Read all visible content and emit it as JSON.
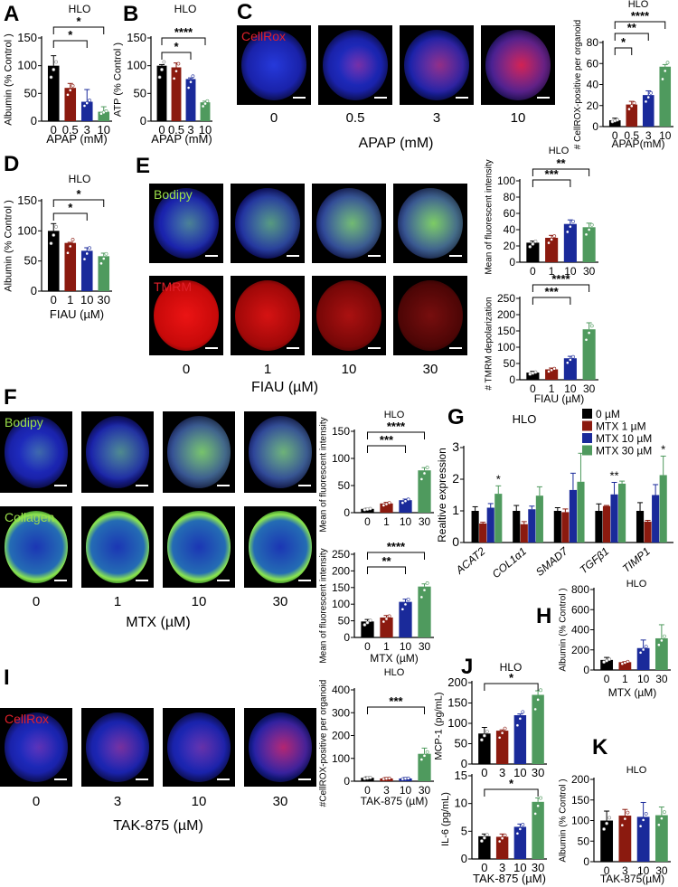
{
  "panels": {
    "A": "A",
    "B": "B",
    "C": "C",
    "D": "D",
    "E": "E",
    "F": "F",
    "G": "G",
    "H": "H",
    "I": "I",
    "J": "J",
    "K": "K"
  },
  "colors": {
    "c0": "#000000",
    "c1": "#8b1a0f",
    "c2": "#1a2a9a",
    "c3": "#4f9a5e",
    "cellrox": "#e0202a",
    "bodipy": "#9be04a",
    "tmrm": "#e0202a",
    "collagen": "#9be04a"
  },
  "images": {
    "C": {
      "channel": "CellRox",
      "labels": [
        "0",
        "0.5",
        "3",
        "10"
      ],
      "axis": "APAP (mM)"
    },
    "E": {
      "channel_top": "Bodipy",
      "channel_bottom": "TMRM",
      "labels": [
        "0",
        "1",
        "10",
        "30"
      ],
      "axis": "FIAU (µM)"
    },
    "F": {
      "channel_top": "Bodipy",
      "channel_bottom": "Collagen",
      "labels": [
        "0",
        "1",
        "10",
        "30"
      ],
      "axis": "MTX (µM)"
    },
    "I": {
      "channel": "CellRox",
      "labels": [
        "0",
        "3",
        "10",
        "30"
      ],
      "axis": "TAK-875 (µM)"
    }
  },
  "chart_data": [
    {
      "id": "A",
      "type": "bar",
      "title": "HLO",
      "categories": [
        "0",
        "0.5",
        "3",
        "10"
      ],
      "values": [
        100,
        60,
        35,
        17
      ],
      "errors": [
        18,
        8,
        22,
        9
      ],
      "ylim": [
        0,
        150
      ],
      "yticks": [
        0,
        50,
        100,
        150
      ],
      "ylabel": "Albumin (% Control )",
      "xlabel": "APAP (mM)",
      "significance": [
        {
          "from": 0,
          "to": 2,
          "label": "*"
        },
        {
          "from": 0,
          "to": 3,
          "label": "*"
        }
      ]
    },
    {
      "id": "B",
      "type": "bar",
      "title": "HLO",
      "categories": [
        "0",
        "0.5",
        "3",
        "10"
      ],
      "values": [
        100,
        97,
        76,
        34
      ],
      "errors": [
        2,
        8,
        2,
        2
      ],
      "ylim": [
        0,
        150
      ],
      "yticks": [
        0,
        50,
        100,
        150
      ],
      "ylabel": "ATP (% Control )",
      "xlabel": "APAP (mM)",
      "significance": [
        {
          "from": 0,
          "to": 2,
          "label": "*"
        },
        {
          "from": 0,
          "to": 3,
          "label": "****"
        }
      ]
    },
    {
      "id": "C",
      "type": "bar",
      "title": "HLO",
      "categories": [
        "0",
        "0.5",
        "3",
        "10"
      ],
      "values": [
        6,
        21,
        30,
        57
      ],
      "errors": [
        2,
        3,
        4,
        2
      ],
      "ylim": [
        0,
        80
      ],
      "yticks": [
        0,
        20,
        40,
        60,
        80
      ],
      "ylabel": "# CellROX-positive per organoid",
      "xlabel": "APAP(mM)",
      "significance": [
        {
          "from": 0,
          "to": 1,
          "label": "*"
        },
        {
          "from": 0,
          "to": 2,
          "label": "**"
        },
        {
          "from": 0,
          "to": 3,
          "label": "****"
        }
      ]
    },
    {
      "id": "D",
      "type": "bar",
      "title": "HLO",
      "categories": [
        "0",
        "1",
        "10",
        "30"
      ],
      "values": [
        100,
        80,
        67,
        58
      ],
      "errors": [
        12,
        1,
        5,
        5
      ],
      "ylim": [
        0,
        150
      ],
      "yticks": [
        0,
        50,
        100,
        150
      ],
      "ylabel": "Albumin (% Control )",
      "xlabel": "FIAU (µM)",
      "significance": [
        {
          "from": 0,
          "to": 2,
          "label": "*"
        },
        {
          "from": 0,
          "to": 3,
          "label": "*"
        }
      ]
    },
    {
      "id": "E1",
      "type": "bar",
      "title": "HLO",
      "categories": [
        "0",
        "1",
        "10",
        "30"
      ],
      "values": [
        24,
        30,
        47,
        43
      ],
      "errors": [
        2,
        3,
        5,
        5
      ],
      "ylim": [
        0,
        100
      ],
      "yticks": [
        0,
        20,
        40,
        60,
        80,
        100
      ],
      "ylabel": "Mean of fluorescent intensity",
      "xlabel": "",
      "significance": [
        {
          "from": 0,
          "to": 2,
          "label": "***"
        },
        {
          "from": 0,
          "to": 3,
          "label": "**"
        }
      ]
    },
    {
      "id": "E2",
      "type": "bar",
      "title": "",
      "categories": [
        "0",
        "1",
        "10",
        "30"
      ],
      "values": [
        22,
        32,
        66,
        155
      ],
      "errors": [
        4,
        4,
        6,
        20
      ],
      "ylim": [
        0,
        250
      ],
      "yticks": [
        0,
        50,
        100,
        150,
        200,
        250
      ],
      "ylabel": "# TMRM depolarization",
      "xlabel": "FIAU  (µM)",
      "significance": [
        {
          "from": 0,
          "to": 2,
          "label": "***"
        },
        {
          "from": 0,
          "to": 3,
          "label": "****"
        }
      ]
    },
    {
      "id": "F1",
      "type": "bar",
      "title": "HLO",
      "categories": [
        "0",
        "1",
        "10",
        "30"
      ],
      "values": [
        7,
        17,
        23,
        78
      ],
      "errors": [
        1,
        2,
        2,
        5
      ],
      "ylim": [
        0,
        150
      ],
      "yticks": [
        0,
        50,
        100,
        150
      ],
      "ylabel": "Mean of fluorescent intensity",
      "xlabel": "",
      "significance": [
        {
          "from": 0,
          "to": 2,
          "label": "***"
        },
        {
          "from": 0,
          "to": 3,
          "label": "****"
        }
      ]
    },
    {
      "id": "F2",
      "type": "bar",
      "title": "",
      "categories": [
        "0",
        "1",
        "10",
        "30"
      ],
      "values": [
        48,
        60,
        107,
        153
      ],
      "errors": [
        6,
        6,
        8,
        8
      ],
      "ylim": [
        0,
        250
      ],
      "yticks": [
        0,
        50,
        100,
        150,
        200,
        250
      ],
      "ylabel": "Mean of fluorescent intensity",
      "xlabel": "MTX  (µM)",
      "significance": [
        {
          "from": 0,
          "to": 2,
          "label": "**"
        },
        {
          "from": 0,
          "to": 3,
          "label": "****"
        }
      ]
    },
    {
      "id": "G",
      "type": "bar",
      "title": "HLO",
      "categories": [
        "ACAT2",
        "COL1α1",
        "SMAD7",
        "TGFβ1",
        "TIMP1"
      ],
      "ylim": [
        0,
        3
      ],
      "yticks": [
        0,
        1,
        2,
        3
      ],
      "ylabel": "Realtive expression",
      "xlabel": "",
      "series": [
        {
          "name": "0 µM",
          "values": [
            1,
            1,
            1,
            1,
            1
          ],
          "errors": [
            0.13,
            0.17,
            0.1,
            0.22,
            0.26
          ]
        },
        {
          "name": "MTX 1 µM",
          "values": [
            0.6,
            0.58,
            0.96,
            1.15,
            0.66
          ],
          "errors": [
            0.04,
            0.08,
            0.1,
            0.02,
            0.04
          ]
        },
        {
          "name": "MTX 10 µM",
          "values": [
            1.1,
            1.05,
            1.66,
            1.52,
            1.5
          ],
          "errors": [
            0.13,
            0.1,
            0.53,
            0.38,
            0.33
          ]
        },
        {
          "name": "MTX 30 µM",
          "values": [
            1.54,
            1.48,
            1.92,
            1.86,
            2.13
          ],
          "errors": [
            0.25,
            0.28,
            0.9,
            0.08,
            0.6
          ]
        }
      ],
      "annotations": [
        {
          "category": 0,
          "series": 3,
          "label": "*"
        },
        {
          "category": 3,
          "series": 2,
          "label": "**"
        },
        {
          "category": 4,
          "series": 3,
          "label": "*"
        }
      ],
      "legend": "top-right"
    },
    {
      "id": "H",
      "type": "bar",
      "title": "HLO",
      "categories": [
        "0",
        "1",
        "10",
        "30"
      ],
      "values": [
        100,
        78,
        218,
        315
      ],
      "errors": [
        25,
        4,
        80,
        135
      ],
      "ylim": [
        0,
        800
      ],
      "yticks": [
        0,
        200,
        400,
        600,
        800
      ],
      "ylabel": "Albumin (% Control )",
      "xlabel": "MTX (µM)",
      "significance": []
    },
    {
      "id": "I",
      "type": "bar",
      "title": "HLO",
      "categories": [
        "0",
        "3",
        "10",
        "30"
      ],
      "values": [
        15,
        12,
        12,
        120
      ],
      "errors": [
        4,
        4,
        4,
        25
      ],
      "ylim": [
        0,
        400
      ],
      "yticks": [
        0,
        100,
        200,
        300,
        400
      ],
      "ylabel": "#CellROX-positive  per organoid",
      "xlabel": "TAK-875 (µM)",
      "significance": [
        {
          "from": 0,
          "to": 3,
          "label": "***"
        }
      ]
    },
    {
      "id": "J1",
      "type": "bar",
      "title": "HLO",
      "categories": [
        "0",
        "3",
        "10",
        "30"
      ],
      "values": [
        75,
        82,
        120,
        170
      ],
      "errors": [
        15,
        2,
        3,
        10
      ],
      "ylim": [
        0,
        200
      ],
      "yticks": [
        0,
        50,
        100,
        150,
        200
      ],
      "ylabel": "MCP-1 (pg/mL)",
      "xlabel": "",
      "significance": [
        {
          "from": 0,
          "to": 3,
          "label": "*"
        }
      ]
    },
    {
      "id": "J2",
      "type": "bar",
      "title": "",
      "categories": [
        "0",
        "3",
        "10",
        "30"
      ],
      "values": [
        4.1,
        4.0,
        5.8,
        10.3
      ],
      "errors": [
        0.4,
        0.5,
        0.5,
        0.7
      ],
      "ylim": [
        0,
        15
      ],
      "yticks": [
        0,
        5,
        10,
        15
      ],
      "ylabel": "IL-6  (pg/mL)",
      "xlabel": "TAK-875 (µM)",
      "significance": [
        {
          "from": 0,
          "to": 3,
          "label": "*"
        }
      ]
    },
    {
      "id": "K",
      "type": "bar",
      "title": "HLO",
      "categories": [
        "0",
        "3",
        "10",
        "30"
      ],
      "values": [
        100,
        112,
        109,
        113
      ],
      "errors": [
        23,
        15,
        35,
        20
      ],
      "ylim": [
        0,
        200
      ],
      "yticks": [
        0,
        50,
        100,
        150,
        200
      ],
      "ylabel": "Albumin (% Control )",
      "xlabel": "TAK-875(µM)",
      "significance": []
    }
  ]
}
